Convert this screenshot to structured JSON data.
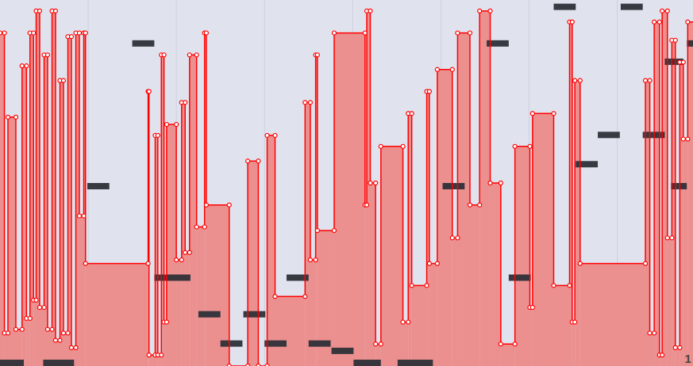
{
  "chart_data": {
    "type": "automation",
    "xlim": [
      0,
      7.86
    ],
    "ylim": [
      0,
      100
    ],
    "xticks": [
      1,
      2,
      3,
      4,
      5,
      6,
      7
    ],
    "corner_label": "1",
    "envelope": {
      "color": "#ff0000",
      "fill": "#eb8f8f",
      "x": [
        0,
        0.05,
        0.09,
        0.18,
        0.25,
        0.3,
        0.34,
        0.38,
        0.41,
        0.45,
        0.5,
        0.54,
        0.59,
        0.63,
        0.68,
        0.72,
        0.77,
        0.81,
        0.86,
        0.9,
        0.95,
        0.97,
        1.68,
        1.69,
        1.76,
        1.79,
        1.83,
        1.86,
        1.89,
        2,
        2.06,
        2.1,
        2.15,
        2.23,
        2.32,
        2.34,
        2.6,
        2.81,
        2.93,
        3.03,
        3.12,
        3.46,
        3.52,
        3.58,
        3.6,
        3.79,
        4.14,
        4.16,
        4.2,
        4.26,
        4.32,
        4.57,
        4.63,
        4.67,
        4.84,
        4.87,
        4.96,
        5.13,
        5.19,
        5.33,
        5.44,
        5.56,
        5.68,
        5.84,
        6.01,
        6.04,
        6.28,
        6.46,
        6.49,
        6.52,
        6.58,
        7.32,
        7.37,
        7.42,
        7.48,
        7.51,
        7.57,
        7.62,
        7.66,
        7.71,
        7.75,
        7.8
      ],
      "values": [
        91,
        9,
        68,
        10,
        82,
        13,
        91,
        18,
        97,
        16,
        85,
        10,
        97,
        7,
        78,
        9,
        90,
        5,
        91,
        41,
        91,
        28,
        75,
        3,
        63,
        3,
        85,
        12,
        66,
        29,
        72,
        31,
        85,
        38,
        91,
        44,
        0,
        56,
        0,
        63,
        19,
        72,
        29,
        85,
        37,
        91,
        44,
        97,
        50,
        6,
        60,
        12,
        69,
        22,
        75,
        28,
        81,
        35,
        91,
        44,
        97,
        50,
        6,
        60,
        16,
        69,
        22,
        94,
        12,
        78,
        28,
        78,
        9,
        94,
        3,
        97,
        35,
        89,
        5,
        83,
        62,
        94
      ]
    },
    "notes": {
      "color": "#2e3038",
      "start": [
        1.5,
        0.99,
        1.75,
        3.25,
        2.25,
        2.76,
        2.5,
        3,
        3.5,
        3.76,
        4.01,
        4.51,
        5.02,
        5.52,
        5.77,
        6.28,
        6.53,
        6.78,
        7.04,
        7.29,
        7.54,
        7.61,
        7.79,
        0,
        0.49
      ],
      "length": [
        0.25,
        0.25,
        0.41,
        0.25,
        0.25,
        0.25,
        0.25,
        0.25,
        0.25,
        0.25,
        0.31,
        0.4,
        0.25,
        0.25,
        0.25,
        0.25,
        0.25,
        0.25,
        0.25,
        0.25,
        0.21,
        0.18,
        0.07,
        0.27,
        0.35
      ],
      "pitch": [
        89,
        50,
        25,
        25,
        15,
        15,
        7,
        7,
        7,
        5,
        1,
        1,
        50,
        89,
        25,
        99,
        56,
        64,
        99,
        64,
        84,
        50,
        89,
        1,
        1
      ]
    }
  }
}
